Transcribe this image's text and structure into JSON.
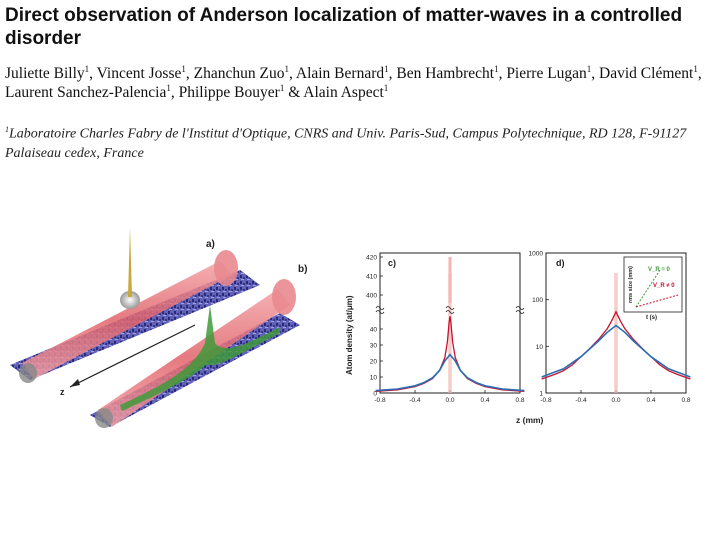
{
  "paper": {
    "title": "Direct observation of Anderson localization of matter-waves in a controlled disorder",
    "authors": [
      {
        "name": "Juliette Billy",
        "sup": "1",
        "sep": ", "
      },
      {
        "name": "Vincent Josse",
        "sup": "1",
        "sep": ", "
      },
      {
        "name": "Zhanchun Zuo",
        "sup": "1",
        "sep": ", "
      },
      {
        "name": "Alain Bernard",
        "sup": "1",
        "sep": ", "
      },
      {
        "name": "Ben Hambrecht",
        "sup": "1",
        "sep": ", "
      },
      {
        "name": "Pierre Lugan",
        "sup": "1",
        "sep": ", "
      },
      {
        "name": "David Clément",
        "sup": "1",
        "sep": ", "
      },
      {
        "name": "Laurent Sanchez-Palencia",
        "sup": "1",
        "sep": ", "
      },
      {
        "name": "Philippe Bouyer",
        "sup": "1",
        "sep": " & "
      },
      {
        "name": "Alain Aspect",
        "sup": "1",
        "sep": ""
      }
    ],
    "affiliation_sup": "1",
    "affiliation": "Laboratoire Charles Fabry de l'Institut d'Optique, CNRS and Univ. Paris-Sud, Campus Polytechnique, RD 128, F-91127 Palaiseau cedex, France"
  },
  "figure": {
    "panel_a_label": "a)",
    "panel_b_label": "b)",
    "axis_z_label": "z",
    "colors": {
      "beam": "#e8747a",
      "speckle": "#3a3a9c",
      "peak_green": "#3f9a3a",
      "profile_red": "#c8102e",
      "fit_blue": "#2a6fb5",
      "peak_shade": "#f4b6b2"
    }
  },
  "chart_data": [
    {
      "type": "line",
      "panel_label": "c)",
      "ylabel": "Atom density (at/μm)",
      "xlabel": "z (mm)",
      "xticks": [
        "-0.8",
        "-0.4",
        "0.0",
        "0.4",
        "0.8"
      ],
      "xlim": [
        -0.8,
        0.8
      ],
      "yticks_upper": [
        "420",
        "410",
        "400"
      ],
      "yticks_lower": [
        "40",
        "30",
        "20",
        "10",
        "0"
      ],
      "y_break": true,
      "series": [
        {
          "style": "profile",
          "x": [
            -0.85,
            -0.6,
            -0.4,
            -0.3,
            -0.2,
            -0.12,
            -0.06,
            -0.03,
            -0.01,
            0.0,
            0.01,
            0.03,
            0.06,
            0.12,
            0.2,
            0.3,
            0.4,
            0.6,
            0.85
          ],
          "y": [
            1,
            2,
            4,
            6,
            9,
            14,
            22,
            32,
            44,
            48,
            44,
            32,
            22,
            14,
            9,
            6,
            4,
            2,
            1
          ]
        },
        {
          "style": "fit",
          "x": [
            -0.85,
            -0.6,
            -0.4,
            -0.3,
            -0.2,
            -0.12,
            -0.06,
            0.0,
            0.06,
            0.12,
            0.2,
            0.3,
            0.4,
            0.6,
            0.85
          ],
          "y": [
            1.5,
            2.5,
            4.5,
            6.5,
            9.5,
            14,
            20,
            24,
            20,
            14,
            9.5,
            6.5,
            4.5,
            2.5,
            1.5
          ]
        }
      ]
    },
    {
      "type": "line",
      "panel_label": "d)",
      "xlabel": "z (mm)",
      "xticks": [
        "-0.8",
        "-0.4",
        "0.0",
        "0.4",
        "0.8"
      ],
      "xlim": [
        -0.8,
        0.8
      ],
      "yticks": [
        "1000",
        "100",
        "10",
        "1"
      ],
      "yscale": "log",
      "ylim": [
        1,
        1000
      ],
      "inset": {
        "ylabel": "rms size (mm)",
        "xlabel": "t (s)",
        "legend": [
          "V_R = 0",
          "V_R ≠ 0"
        ]
      },
      "series": [
        {
          "style": "profile",
          "x": [
            -0.85,
            -0.7,
            -0.6,
            -0.5,
            -0.4,
            -0.3,
            -0.2,
            -0.1,
            -0.05,
            0.0,
            0.05,
            0.1,
            0.2,
            0.3,
            0.4,
            0.5,
            0.6,
            0.7,
            0.85
          ],
          "y": [
            2,
            2.5,
            3,
            4,
            6,
            9,
            14,
            24,
            35,
            55,
            35,
            24,
            14,
            9,
            6,
            4,
            3,
            2.5,
            2
          ]
        },
        {
          "style": "fit",
          "x": [
            -0.85,
            -0.6,
            -0.4,
            -0.2,
            -0.1,
            0.0,
            0.1,
            0.2,
            0.4,
            0.6,
            0.85
          ],
          "y": [
            2.2,
            3.3,
            6,
            13,
            20,
            28,
            20,
            13,
            6,
            3.3,
            2.2
          ]
        }
      ]
    }
  ]
}
